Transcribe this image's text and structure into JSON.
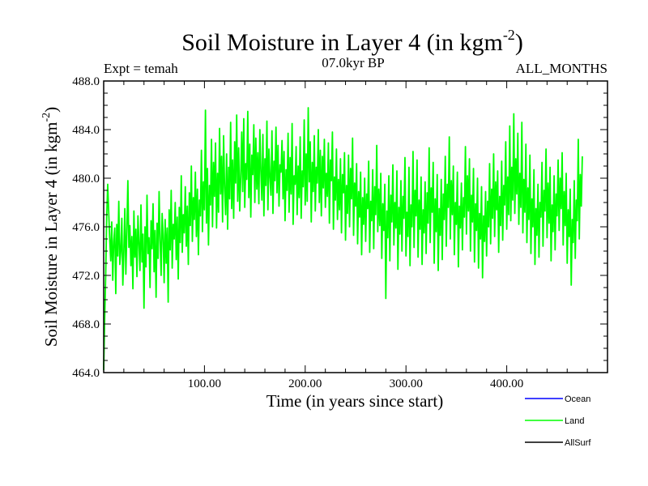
{
  "chart_data": {
    "type": "line",
    "title": "Soil Moisture in Layer 4 (in kgm",
    "title_sup": "-2",
    "title_close": ")",
    "expt_label": "Expt = temah",
    "period_label": "07.0kyr BP",
    "months_label": "ALL_MONTHS",
    "xlabel": "Time (in years since start)",
    "ylabel": "Soil Moisture in Layer 4 (in kgm",
    "ylabel_sup": "-2",
    "ylabel_close": ")",
    "xlim": [
      0,
      500
    ],
    "ylim": [
      464.0,
      488.0
    ],
    "x_ticks": [
      100,
      200,
      300,
      400
    ],
    "x_tick_labels": [
      "100.00",
      "200.00",
      "300.00",
      "400.00"
    ],
    "y_ticks": [
      464,
      468,
      472,
      476,
      480,
      484,
      488
    ],
    "y_tick_labels": [
      "464.0",
      "468.0",
      "472.0",
      "476.0",
      "480.0",
      "484.0",
      "488.0"
    ],
    "legend_position": "bottom-right",
    "series": [
      {
        "name": "Ocean",
        "color": "#0000ff",
        "values": []
      },
      {
        "name": "Land",
        "color": "#00ff00",
        "x_start": 0,
        "x_step": 1,
        "values": [
          464.2,
          468.5,
          472.0,
          476.8,
          479.5,
          477.2,
          475.0,
          473.2,
          476.4,
          471.6,
          474.8,
          475.9,
          470.5,
          476.2,
          473.6,
          478.1,
          472.9,
          474.0,
          476.7,
          471.2,
          473.9,
          477.5,
          472.1,
          475.6,
          479.8,
          474.3,
          476.1,
          472.8,
          475.2,
          470.9,
          477.3,
          473.5,
          475.8,
          471.9,
          476.9,
          474.6,
          472.4,
          477.8,
          473.1,
          475.4,
          469.3,
          476.0,
          472.7,
          478.6,
          473.8,
          475.1,
          471.0,
          476.5,
          474.2,
          477.9,
          472.3,
          475.7,
          470.2,
          476.3,
          473.4,
          478.9,
          474.9,
          472.0,
          477.1,
          475.3,
          471.4,
          476.6,
          473.0,
          475.9,
          469.8,
          477.4,
          474.1,
          479.0,
          472.6,
          476.2,
          475.0,
          478.0,
          473.3,
          476.8,
          471.7,
          477.6,
          474.7,
          480.2,
          473.9,
          477.0,
          475.5,
          479.3,
          474.4,
          477.7,
          472.9,
          478.8,
          476.1,
          481.0,
          474.8,
          478.4,
          476.6,
          480.5,
          475.2,
          479.1,
          473.7,
          478.2,
          476.9,
          482.3,
          475.6,
          479.7,
          477.4,
          485.6,
          476.3,
          480.8,
          474.5,
          479.4,
          477.8,
          483.2,
          476.0,
          481.3,
          478.5,
          482.9,
          475.9,
          480.4,
          477.2,
          484.1,
          478.7,
          481.8,
          476.4,
          483.5,
          479.2,
          477.0,
          482.0,
          475.8,
          480.9,
          478.3,
          484.6,
          477.5,
          481.5,
          476.7,
          483.0,
          479.6,
          485.2,
          478.1,
          482.5,
          477.3,
          480.0,
          483.8,
          478.9,
          484.9,
          477.6,
          481.2,
          479.9,
          485.5,
          478.4,
          482.8,
          476.8,
          481.9,
          480.3,
          484.4,
          478.0,
          483.3,
          479.1,
          482.1,
          477.9,
          484.0,
          480.6,
          478.2,
          483.6,
          476.9,
          481.6,
          479.4,
          484.7,
          477.4,
          482.4,
          480.1,
          478.6,
          483.9,
          477.1,
          481.4,
          479.8,
          484.2,
          478.8,
          482.7,
          477.7,
          481.1,
          480.5,
          483.1,
          478.3,
          482.2,
          476.5,
          480.7,
          479.0,
          483.7,
          477.2,
          481.7,
          478.7,
          484.5,
          476.2,
          480.2,
          479.5,
          482.6,
          477.0,
          481.0,
          478.4,
          483.4,
          476.7,
          480.6,
          479.3,
          484.8,
          477.8,
          482.0,
          478.1,
          485.8,
          479.7,
          483.0,
          476.4,
          481.3,
          478.9,
          483.5,
          477.3,
          480.9,
          479.6,
          484.0,
          478.0,
          482.3,
          476.9,
          481.8,
          479.2,
          483.2,
          477.6,
          480.4,
          478.5,
          482.9,
          476.3,
          481.5,
          479.8,
          483.8,
          475.8,
          480.1,
          478.2,
          482.4,
          476.6,
          479.9,
          477.4,
          481.6,
          475.5,
          480.3,
          478.8,
          482.1,
          474.9,
          479.4,
          477.1,
          481.9,
          476.0,
          480.8,
          478.3,
          483.3,
          475.3,
          479.6,
          477.7,
          481.2,
          474.6,
          478.9,
          476.8,
          480.5,
          473.7,
          478.4,
          476.2,
          480.0,
          474.8,
          478.7,
          477.5,
          481.4,
          473.9,
          478.1,
          476.5,
          480.7,
          474.2,
          479.3,
          477.0,
          482.7,
          475.6,
          479.1,
          476.1,
          480.4,
          473.4,
          477.9,
          475.7,
          479.5,
          470.1,
          477.3,
          475.1,
          480.2,
          473.2,
          478.6,
          476.4,
          481.1,
          474.5,
          478.0,
          475.9,
          480.6,
          472.5,
          477.6,
          475.4,
          479.8,
          474.0,
          478.5,
          476.7,
          481.7,
          473.6,
          477.2,
          475.2,
          480.9,
          472.8,
          477.8,
          476.0,
          482.2,
          474.3,
          479.0,
          476.9,
          481.5,
          473.5,
          478.2,
          475.8,
          480.1,
          472.9,
          477.4,
          475.5,
          479.7,
          473.8,
          478.8,
          476.3,
          482.5,
          474.7,
          479.2,
          477.2,
          481.3,
          473.0,
          478.3,
          475.6,
          480.3,
          472.4,
          477.5,
          475.3,
          479.9,
          473.3,
          478.7,
          476.6,
          481.8,
          474.4,
          479.5,
          477.6,
          483.4,
          475.0,
          479.8,
          477.0,
          481.0,
          473.7,
          478.0,
          476.2,
          480.5,
          472.7,
          477.7,
          475.9,
          479.6,
          474.1,
          478.4,
          476.8,
          482.6,
          475.4,
          480.2,
          477.3,
          481.6,
          474.0,
          478.6,
          476.4,
          480.8,
          473.1,
          477.9,
          475.7,
          480.0,
          472.6,
          477.1,
          475.0,
          479.3,
          471.8,
          476.9,
          474.8,
          478.9,
          473.6,
          478.1,
          476.0,
          481.2,
          474.6,
          479.1,
          476.7,
          482.0,
          475.2,
          479.7,
          477.4,
          480.6,
          473.9,
          478.5,
          476.1,
          481.4,
          474.9,
          479.4,
          477.8,
          483.0,
          475.8,
          480.1,
          477.0,
          484.3,
          476.5,
          480.9,
          478.2,
          485.3,
          477.1,
          481.6,
          478.7,
          483.7,
          476.2,
          480.4,
          477.6,
          484.6,
          475.5,
          479.9,
          477.2,
          482.8,
          474.7,
          479.2,
          476.6,
          481.9,
          473.8,
          478.3,
          476.0,
          480.7,
          472.9,
          477.5,
          475.3,
          479.5,
          473.5,
          478.0,
          476.8,
          481.3,
          474.4,
          479.0,
          477.3,
          482.4,
          475.1,
          479.6,
          476.3,
          480.9,
          473.2,
          477.8,
          475.6,
          480.2,
          474.1,
          478.7,
          476.9,
          481.5,
          475.7,
          480.0,
          477.5,
          482.1,
          474.5,
          478.9,
          476.1,
          480.4,
          473.0,
          477.4,
          475.2,
          479.1,
          471.2,
          476.6,
          474.7,
          479.8,
          473.4,
          478.2,
          476.5,
          483.2,
          475.0,
          480.3,
          477.7,
          481.8
        ]
      },
      {
        "name": "AllSurf",
        "color": "#000000",
        "values": []
      }
    ]
  }
}
